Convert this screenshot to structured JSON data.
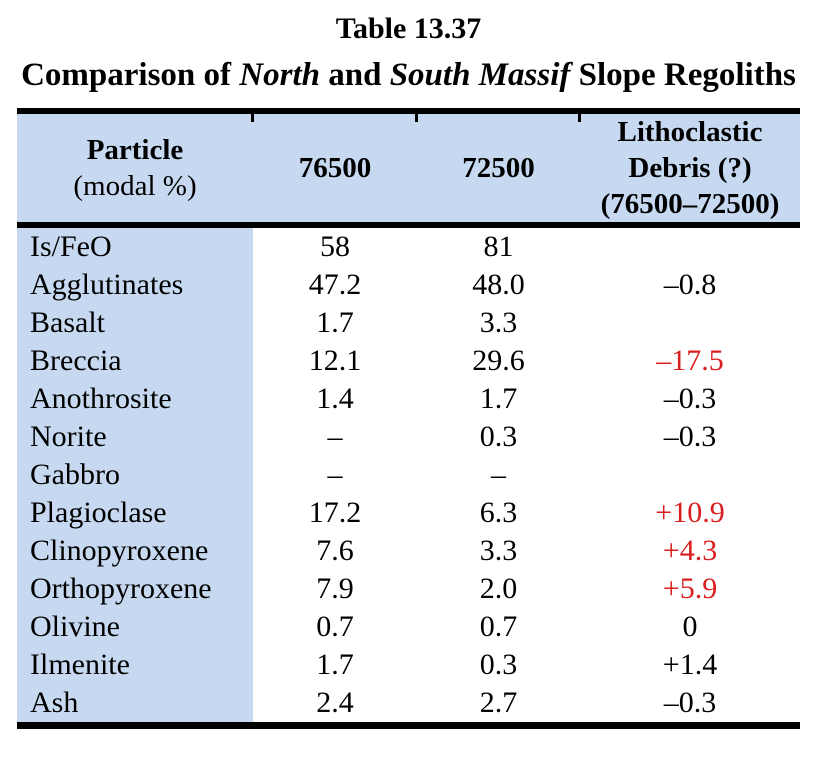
{
  "page": {
    "title": "Table 13.37",
    "subtitle": {
      "prefix": "Comparison of ",
      "italic1": "North",
      "mid": " and ",
      "italic2": "South Massif",
      "suffix": " Slope Regoliths"
    }
  },
  "table": {
    "header": {
      "particle_line1": "Particle",
      "particle_line2": "(modal %)",
      "col_76500": "76500",
      "col_72500": "72500",
      "debris_line1": "Lithoclastic",
      "debris_line2": "Debris (?)",
      "debris_line3": "(76500–72500)"
    },
    "rows": [
      {
        "particle": "Is/FeO",
        "c76500": "58",
        "c72500": "81",
        "debris": "",
        "red": false
      },
      {
        "particle": "Agglutinates",
        "c76500": "47.2",
        "c72500": "48.0",
        "debris": "–0.8",
        "red": false
      },
      {
        "particle": "Basalt",
        "c76500": "1.7",
        "c72500": "3.3",
        "debris": "",
        "red": false
      },
      {
        "particle": "Breccia",
        "c76500": "12.1",
        "c72500": "29.6",
        "debris": "–17.5",
        "red": true
      },
      {
        "particle": "Anothrosite",
        "c76500": "1.4",
        "c72500": "1.7",
        "debris": "–0.3",
        "red": false
      },
      {
        "particle": "Norite",
        "c76500": "–",
        "c72500": "0.3",
        "debris": "–0.3",
        "red": false
      },
      {
        "particle": "Gabbro",
        "c76500": "–",
        "c72500": "–",
        "debris": "",
        "red": false
      },
      {
        "particle": "Plagioclase",
        "c76500": "17.2",
        "c72500": "6.3",
        "debris": "+10.9",
        "red": true
      },
      {
        "particle": "Clinopyroxene",
        "c76500": "7.6",
        "c72500": "3.3",
        "debris": "+4.3",
        "red": true
      },
      {
        "particle": "Orthopyroxene",
        "c76500": "7.9",
        "c72500": "2.0",
        "debris": "+5.9",
        "red": true
      },
      {
        "particle": "Olivine",
        "c76500": "0.7",
        "c72500": "0.7",
        "debris": "0",
        "red": false
      },
      {
        "particle": "Ilmenite",
        "c76500": "1.7",
        "c72500": "0.3",
        "debris": "+1.4",
        "red": false
      },
      {
        "particle": "Ash",
        "c76500": "2.4",
        "c72500": "2.7",
        "debris": "–0.3",
        "red": false
      }
    ]
  },
  "colors": {
    "header_bg": "#C6D9F0",
    "particle_col_bg": "#C6D9F0",
    "highlight_red": "#D81E1E",
    "border_black": "#000000"
  }
}
